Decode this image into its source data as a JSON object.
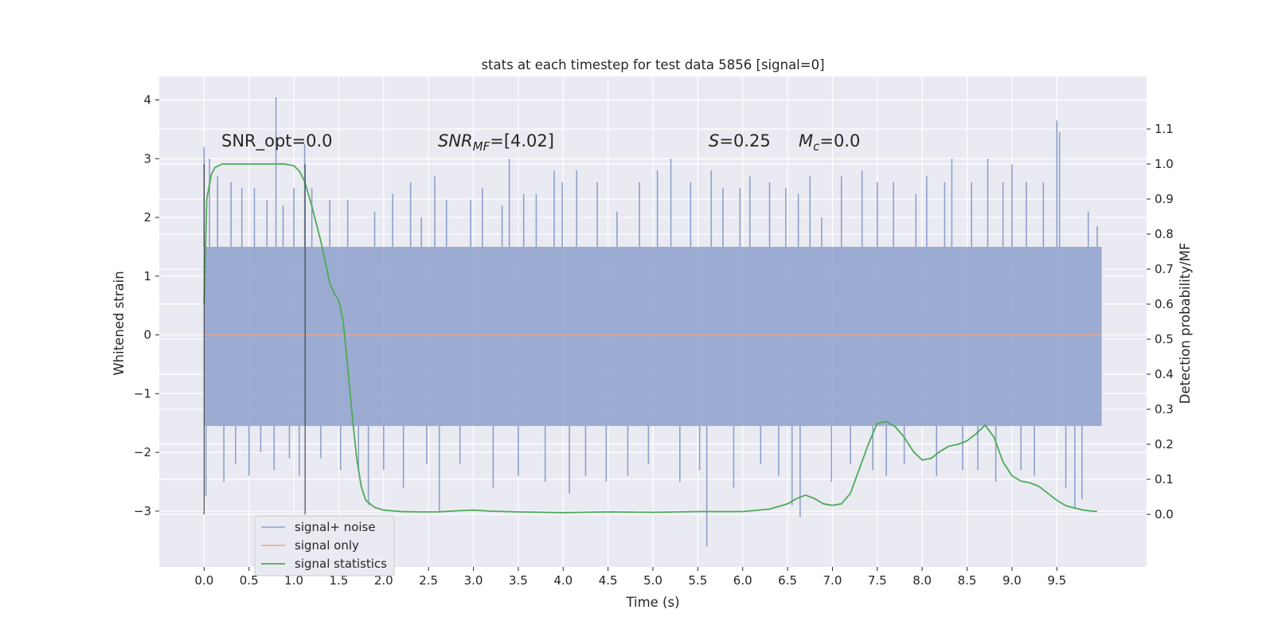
{
  "chart_data": {
    "type": "line",
    "title": "stats at each timestep for test data 5856 [signal=0]",
    "xlabel": "Time (s)",
    "ylabel": "Whitened strain",
    "y2label": "Detection probability/MF",
    "xlim": [
      -0.5,
      10.5
    ],
    "ylim": [
      -3.95,
      4.4
    ],
    "y2lim": [
      -0.15,
      1.25
    ],
    "grid": true,
    "legend_position": "lower-left",
    "x_ticks": [
      "0.0",
      "0.5",
      "1.0",
      "1.5",
      "2.0",
      "2.5",
      "3.0",
      "3.5",
      "4.0",
      "4.5",
      "5.0",
      "5.5",
      "6.0",
      "6.5",
      "7.0",
      "7.5",
      "8.0",
      "8.5",
      "9.0",
      "9.5"
    ],
    "y_ticks": [
      4,
      3,
      2,
      1,
      0,
      -1,
      -2,
      -3
    ],
    "y_tick_labels": [
      "4",
      "3",
      "2",
      "1",
      "0",
      "−1",
      "−2",
      "−3"
    ],
    "y2_ticks": [
      1.1,
      1.0,
      0.9,
      0.8,
      0.7,
      0.6,
      0.5,
      0.4,
      0.3,
      0.2,
      0.1,
      0.0
    ],
    "y2_tick_labels": [
      "1.1",
      "1.0",
      "0.9",
      "0.8",
      "0.7",
      "0.6",
      "0.5",
      "0.4",
      "0.3",
      "0.2",
      "0.1",
      "0.0"
    ],
    "annotations": {
      "snr_opt": "SNR_opt=0.0",
      "snr_mf_sym": "SNR",
      "snr_mf_sub": "MF",
      "snr_mf_val": "=[4.02]",
      "s_sym": "S",
      "s_val": "=0.25",
      "mc_sym": "M",
      "mc_sub": "c",
      "mc_val": "=0.0"
    },
    "vlines_x": [
      0.0,
      1.125
    ],
    "series": [
      {
        "name": "signal+ noise",
        "axis": "left",
        "color": "#8da0cb",
        "noise_band": [
          -1.55,
          1.5
        ],
        "spikes": [
          [
            0.0,
            3.2
          ],
          [
            0.02,
            -2.75
          ],
          [
            0.06,
            3.0
          ],
          [
            0.15,
            2.7
          ],
          [
            0.22,
            -2.5
          ],
          [
            0.3,
            2.6
          ],
          [
            0.35,
            -2.2
          ],
          [
            0.42,
            2.5
          ],
          [
            0.5,
            -2.4
          ],
          [
            0.56,
            2.5
          ],
          [
            0.63,
            -2.0
          ],
          [
            0.7,
            2.3
          ],
          [
            0.78,
            -2.3
          ],
          [
            0.8,
            4.05
          ],
          [
            0.88,
            2.2
          ],
          [
            0.95,
            -2.1
          ],
          [
            1.0,
            2.5
          ],
          [
            1.06,
            -2.4
          ],
          [
            1.12,
            3.25
          ],
          [
            1.2,
            2.5
          ],
          [
            1.3,
            -2.1
          ],
          [
            1.4,
            2.3
          ],
          [
            1.52,
            -2.3
          ],
          [
            1.6,
            2.3
          ],
          [
            1.72,
            -2.3
          ],
          [
            1.83,
            -2.9
          ],
          [
            1.9,
            2.1
          ],
          [
            2.0,
            -2.3
          ],
          [
            2.1,
            2.4
          ],
          [
            2.22,
            -2.6
          ],
          [
            2.3,
            2.6
          ],
          [
            2.42,
            2.0
          ],
          [
            2.48,
            -2.2
          ],
          [
            2.57,
            2.7
          ],
          [
            2.62,
            -3.0
          ],
          [
            2.7,
            2.3
          ],
          [
            2.85,
            -2.2
          ],
          [
            2.97,
            2.3
          ],
          [
            3.1,
            2.5
          ],
          [
            3.22,
            -2.6
          ],
          [
            3.32,
            2.2
          ],
          [
            3.4,
            3.0
          ],
          [
            3.5,
            -2.4
          ],
          [
            3.56,
            2.4
          ],
          [
            3.7,
            2.4
          ],
          [
            3.8,
            -2.5
          ],
          [
            3.9,
            2.8
          ],
          [
            3.99,
            2.6
          ],
          [
            4.07,
            -2.7
          ],
          [
            4.15,
            2.8
          ],
          [
            4.25,
            -2.4
          ],
          [
            4.38,
            2.6
          ],
          [
            4.48,
            -2.5
          ],
          [
            4.6,
            2.1
          ],
          [
            4.72,
            -2.4
          ],
          [
            4.85,
            2.6
          ],
          [
            4.95,
            -2.2
          ],
          [
            5.05,
            2.8
          ],
          [
            5.2,
            3.0
          ],
          [
            5.3,
            -2.5
          ],
          [
            5.42,
            2.6
          ],
          [
            5.52,
            -2.3
          ],
          [
            5.6,
            -3.6
          ],
          [
            5.65,
            2.8
          ],
          [
            5.78,
            2.5
          ],
          [
            5.9,
            -2.6
          ],
          [
            5.97,
            2.5
          ],
          [
            6.08,
            2.7
          ],
          [
            6.2,
            -2.2
          ],
          [
            6.3,
            2.6
          ],
          [
            6.4,
            -2.4
          ],
          [
            6.48,
            2.5
          ],
          [
            6.55,
            -2.9
          ],
          [
            6.62,
            2.4
          ],
          [
            6.64,
            -3.1
          ],
          [
            6.75,
            2.7
          ],
          [
            6.88,
            2.0
          ],
          [
            6.99,
            -2.5
          ],
          [
            7.1,
            2.7
          ],
          [
            7.2,
            -2.2
          ],
          [
            7.33,
            2.8
          ],
          [
            7.45,
            -2.3
          ],
          [
            7.5,
            2.6
          ],
          [
            7.6,
            -2.4
          ],
          [
            7.68,
            2.6
          ],
          [
            7.8,
            -2.2
          ],
          [
            7.93,
            2.4
          ],
          [
            8.05,
            2.7
          ],
          [
            8.16,
            -2.4
          ],
          [
            8.25,
            2.6
          ],
          [
            8.33,
            3.0
          ],
          [
            8.45,
            -2.3
          ],
          [
            8.55,
            2.6
          ],
          [
            8.62,
            -2.3
          ],
          [
            8.73,
            3.0
          ],
          [
            8.82,
            -2.5
          ],
          [
            8.9,
            2.6
          ],
          [
            9.0,
            2.9
          ],
          [
            9.1,
            -2.3
          ],
          [
            9.16,
            2.6
          ],
          [
            9.25,
            -2.4
          ],
          [
            9.35,
            2.6
          ],
          [
            9.5,
            3.65
          ],
          [
            9.53,
            3.45
          ],
          [
            9.6,
            -2.6
          ],
          [
            9.7,
            -2.95
          ],
          [
            9.78,
            -2.8
          ],
          [
            9.85,
            2.1
          ],
          [
            9.95,
            1.85
          ]
        ]
      },
      {
        "name": "signal only",
        "axis": "left",
        "color": "#e8a58f",
        "x": [
          0.0,
          10.0
        ],
        "y": [
          0.0,
          0.0
        ]
      },
      {
        "name": "signal statistics",
        "axis": "right",
        "color": "#4daa57",
        "x": [
          0.0,
          0.03,
          0.08,
          0.12,
          0.2,
          0.35,
          0.5,
          0.7,
          0.9,
          1.0,
          1.06,
          1.12,
          1.2,
          1.3,
          1.35,
          1.4,
          1.45,
          1.5,
          1.55,
          1.6,
          1.65,
          1.7,
          1.75,
          1.8,
          1.9,
          2.0,
          2.2,
          2.4,
          2.6,
          2.8,
          3.0,
          3.2,
          3.5,
          4.0,
          4.5,
          5.0,
          5.5,
          6.0,
          6.3,
          6.5,
          6.6,
          6.7,
          6.8,
          6.9,
          7.0,
          7.1,
          7.2,
          7.3,
          7.4,
          7.5,
          7.6,
          7.7,
          7.8,
          7.9,
          8.0,
          8.1,
          8.2,
          8.3,
          8.4,
          8.5,
          8.6,
          8.7,
          8.8,
          8.9,
          9.0,
          9.1,
          9.2,
          9.3,
          9.4,
          9.5,
          9.6,
          9.7,
          9.8,
          9.9,
          9.95
        ],
        "y": [
          0.6,
          0.9,
          0.97,
          0.99,
          1.0,
          1.0,
          1.0,
          1.0,
          1.0,
          0.995,
          0.98,
          0.95,
          0.88,
          0.78,
          0.72,
          0.66,
          0.63,
          0.61,
          0.55,
          0.42,
          0.28,
          0.16,
          0.08,
          0.04,
          0.02,
          0.012,
          0.008,
          0.007,
          0.007,
          0.01,
          0.012,
          0.009,
          0.007,
          0.005,
          0.007,
          0.006,
          0.008,
          0.008,
          0.015,
          0.03,
          0.045,
          0.055,
          0.045,
          0.03,
          0.026,
          0.03,
          0.06,
          0.13,
          0.2,
          0.26,
          0.265,
          0.25,
          0.22,
          0.18,
          0.155,
          0.16,
          0.18,
          0.195,
          0.2,
          0.21,
          0.23,
          0.255,
          0.22,
          0.15,
          0.11,
          0.095,
          0.09,
          0.08,
          0.06,
          0.04,
          0.025,
          0.018,
          0.012,
          0.009,
          0.008
        ]
      }
    ]
  }
}
